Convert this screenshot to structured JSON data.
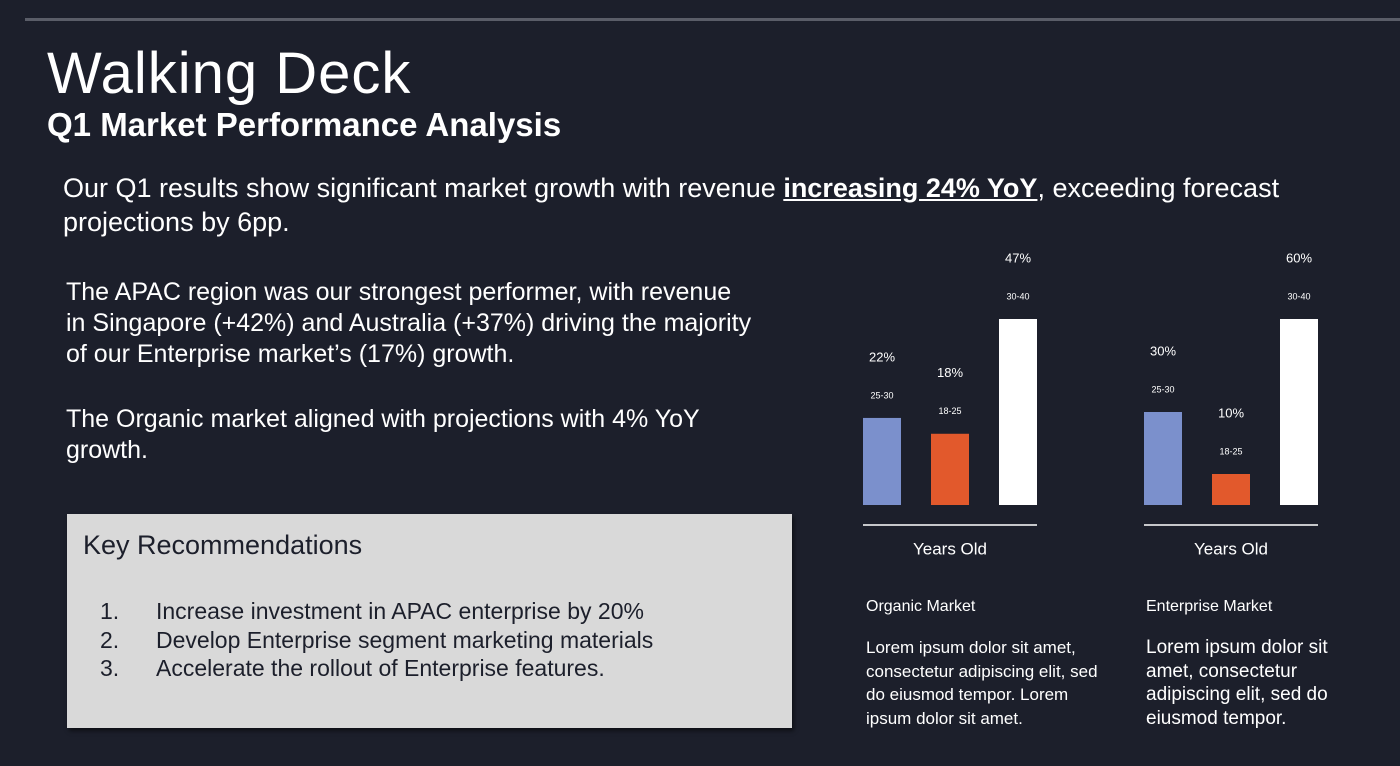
{
  "header": {
    "title": "Walking Deck",
    "subtitle": "Q1 Market Performance Analysis"
  },
  "summary": {
    "before": "Our Q1 results show significant market growth with revenue ",
    "highlight": "increasing 24% YoY",
    "after": ", exceeding forecast projections by 6pp."
  },
  "body": [
    "The APAC region was our strongest performer, with revenue in Singapore (+42%) and Australia (+37%) driving the majority of our Enterprise market’s (17%) growth.",
    "The Organic market aligned with projections with 4% YoY growth."
  ],
  "recommendations": {
    "title": "Key Recommendations",
    "items": [
      {
        "number": "1.",
        "text": "Increase investment in APAC enterprise by 20%"
      },
      {
        "number": "2.",
        "text": "Develop Enterprise segment marketing materials"
      },
      {
        "number": "3.",
        "text": "Accelerate the rollout of Enterprise features."
      }
    ]
  },
  "chart_data": [
    {
      "type": "bar",
      "title": "Organic Market",
      "x_label": "Years Old",
      "description": "Lorem ipsum dolor sit amet, consectetur adipiscing elit, sed do eiusmod tempor. Lorem ipsum dolor sit amet.",
      "categories": [
        "25-30",
        "18-25",
        "30-40"
      ],
      "values": [
        22,
        18,
        47
      ],
      "value_labels": [
        "22%",
        "18%",
        "47%"
      ],
      "colors": [
        "#7b90cc",
        "#e2592c",
        "#ffffff"
      ]
    },
    {
      "type": "bar",
      "title": "Enterprise Market",
      "x_label": "Years Old",
      "description": "Lorem ipsum dolor sit amet, consectetur adipiscing elit, sed do eiusmod tempor.",
      "categories": [
        "25-30",
        "18-25",
        "30-40"
      ],
      "values": [
        30,
        10,
        60
      ],
      "value_labels": [
        "30%",
        "10%",
        "60%"
      ],
      "colors": [
        "#7b90cc",
        "#e2592c",
        "#ffffff"
      ]
    }
  ]
}
